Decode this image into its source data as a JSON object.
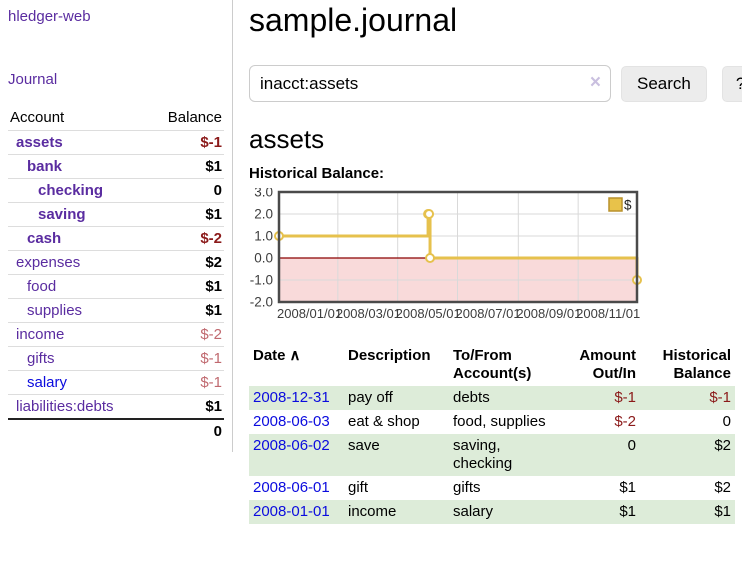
{
  "app": {
    "title": "hledger-web"
  },
  "colors": {
    "link_purple": "#5a2ca0",
    "link_blue": "#0b0bde",
    "negative_strong": "#8b1a1a",
    "negative_light": "#c0696f",
    "row_stripe_green": "#ddecd9"
  },
  "sidebar": {
    "journal_link": "Journal",
    "accounts_table": {
      "headers": {
        "account": "Account",
        "balance": "Balance"
      },
      "rows": [
        {
          "name": "assets",
          "depth": 1,
          "bold": true,
          "color": "purple",
          "balance": "$-1",
          "balance_style": "neg"
        },
        {
          "name": "bank",
          "depth": 2,
          "bold": true,
          "color": "purple",
          "balance": "$1",
          "balance_style": "pos"
        },
        {
          "name": "checking",
          "depth": 3,
          "bold": true,
          "color": "purple",
          "balance": "0",
          "balance_style": "pos"
        },
        {
          "name": "saving",
          "depth": 3,
          "bold": true,
          "color": "purple",
          "balance": "$1",
          "balance_style": "pos"
        },
        {
          "name": "cash",
          "depth": 2,
          "bold": true,
          "color": "purple",
          "balance": "$-2",
          "balance_style": "neg"
        },
        {
          "name": "expenses",
          "depth": 1,
          "bold": false,
          "color": "purple",
          "balance": "$2",
          "balance_style": "pos"
        },
        {
          "name": "food",
          "depth": 2,
          "bold": false,
          "color": "purple",
          "balance": "$1",
          "balance_style": "pos"
        },
        {
          "name": "supplies",
          "depth": 2,
          "bold": false,
          "color": "purple",
          "balance": "$1",
          "balance_style": "pos"
        },
        {
          "name": "income",
          "depth": 1,
          "bold": false,
          "color": "purple",
          "balance": "$-2",
          "balance_style": "neg-light"
        },
        {
          "name": "gifts",
          "depth": 2,
          "bold": false,
          "color": "purple",
          "balance": "$-1",
          "balance_style": "neg-light"
        },
        {
          "name": "salary",
          "depth": 2,
          "bold": false,
          "color": "blue",
          "balance": "$-1",
          "balance_style": "neg-light"
        },
        {
          "name": "liabilities:debts",
          "depth": 1,
          "bold": false,
          "color": "purple",
          "balance": "$1",
          "balance_style": "pos"
        }
      ],
      "total": "0"
    }
  },
  "main": {
    "title": "sample.journal",
    "search": {
      "value": "inacct:assets",
      "clear_icon": "×",
      "button_label": "Search",
      "help_label": "?"
    },
    "account_heading": "assets",
    "chart_label": "Historical Balance:"
  },
  "chart_data": {
    "type": "line",
    "step": true,
    "title": "Historical Balance",
    "series": [
      {
        "name": "$",
        "points": [
          {
            "date": "2008-01-01",
            "value": 1
          },
          {
            "date": "2008-06-01",
            "value": 2
          },
          {
            "date": "2008-06-02",
            "value": 2
          },
          {
            "date": "2008-06-03",
            "value": 0
          },
          {
            "date": "2008-12-31",
            "value": -1
          }
        ]
      }
    ],
    "xlim": [
      "2008-01-01",
      "2008-12-31"
    ],
    "ylim": [
      -2,
      3
    ],
    "yticks": [
      "3.0",
      "2.0",
      "1.0",
      "0.0",
      "-1.0",
      "-2.0"
    ],
    "xticks": [
      "2008/01/01",
      "2008/03/01",
      "2008/05/01",
      "2008/07/01",
      "2008/09/01",
      "2008/11/01"
    ],
    "legend": {
      "label": "$",
      "position": "top-right"
    },
    "grid": true,
    "colors": {
      "line": "#e6c14d",
      "marker_fill": "#ffffff",
      "negative_region": "#f9dada",
      "zero_line": "#8b0000",
      "grid": "#d9d9d9",
      "border": "#4a4a4a",
      "legend_fill": "#e8c24a",
      "legend_border": "#b8912c",
      "tick_text": "#3d3d3d"
    }
  },
  "transactions": {
    "headers": {
      "date": "Date",
      "sort_icon": "∧",
      "description": "Description",
      "accounts": "To/From Account(s)",
      "amount": "Amount Out/In",
      "balance": "Historical Balance"
    },
    "rows": [
      {
        "date": "2008-12-31",
        "description": "pay off",
        "accounts": "debts",
        "amount": "$-1",
        "amount_style": "neg",
        "balance": "$-1",
        "balance_style": "neg"
      },
      {
        "date": "2008-06-03",
        "description": "eat & shop",
        "accounts": "food, supplies",
        "amount": "$-2",
        "amount_style": "neg",
        "balance": "0",
        "balance_style": "pos"
      },
      {
        "date": "2008-06-02",
        "description": "save",
        "accounts": "saving, checking",
        "amount": "0",
        "amount_style": "pos",
        "balance": "$2",
        "balance_style": "pos"
      },
      {
        "date": "2008-06-01",
        "description": "gift",
        "accounts": "gifts",
        "amount": "$1",
        "amount_style": "pos",
        "balance": "$2",
        "balance_style": "pos"
      },
      {
        "date": "2008-01-01",
        "description": "income",
        "accounts": "salary",
        "amount": "$1",
        "amount_style": "pos",
        "balance": "$1",
        "balance_style": "pos"
      }
    ]
  }
}
